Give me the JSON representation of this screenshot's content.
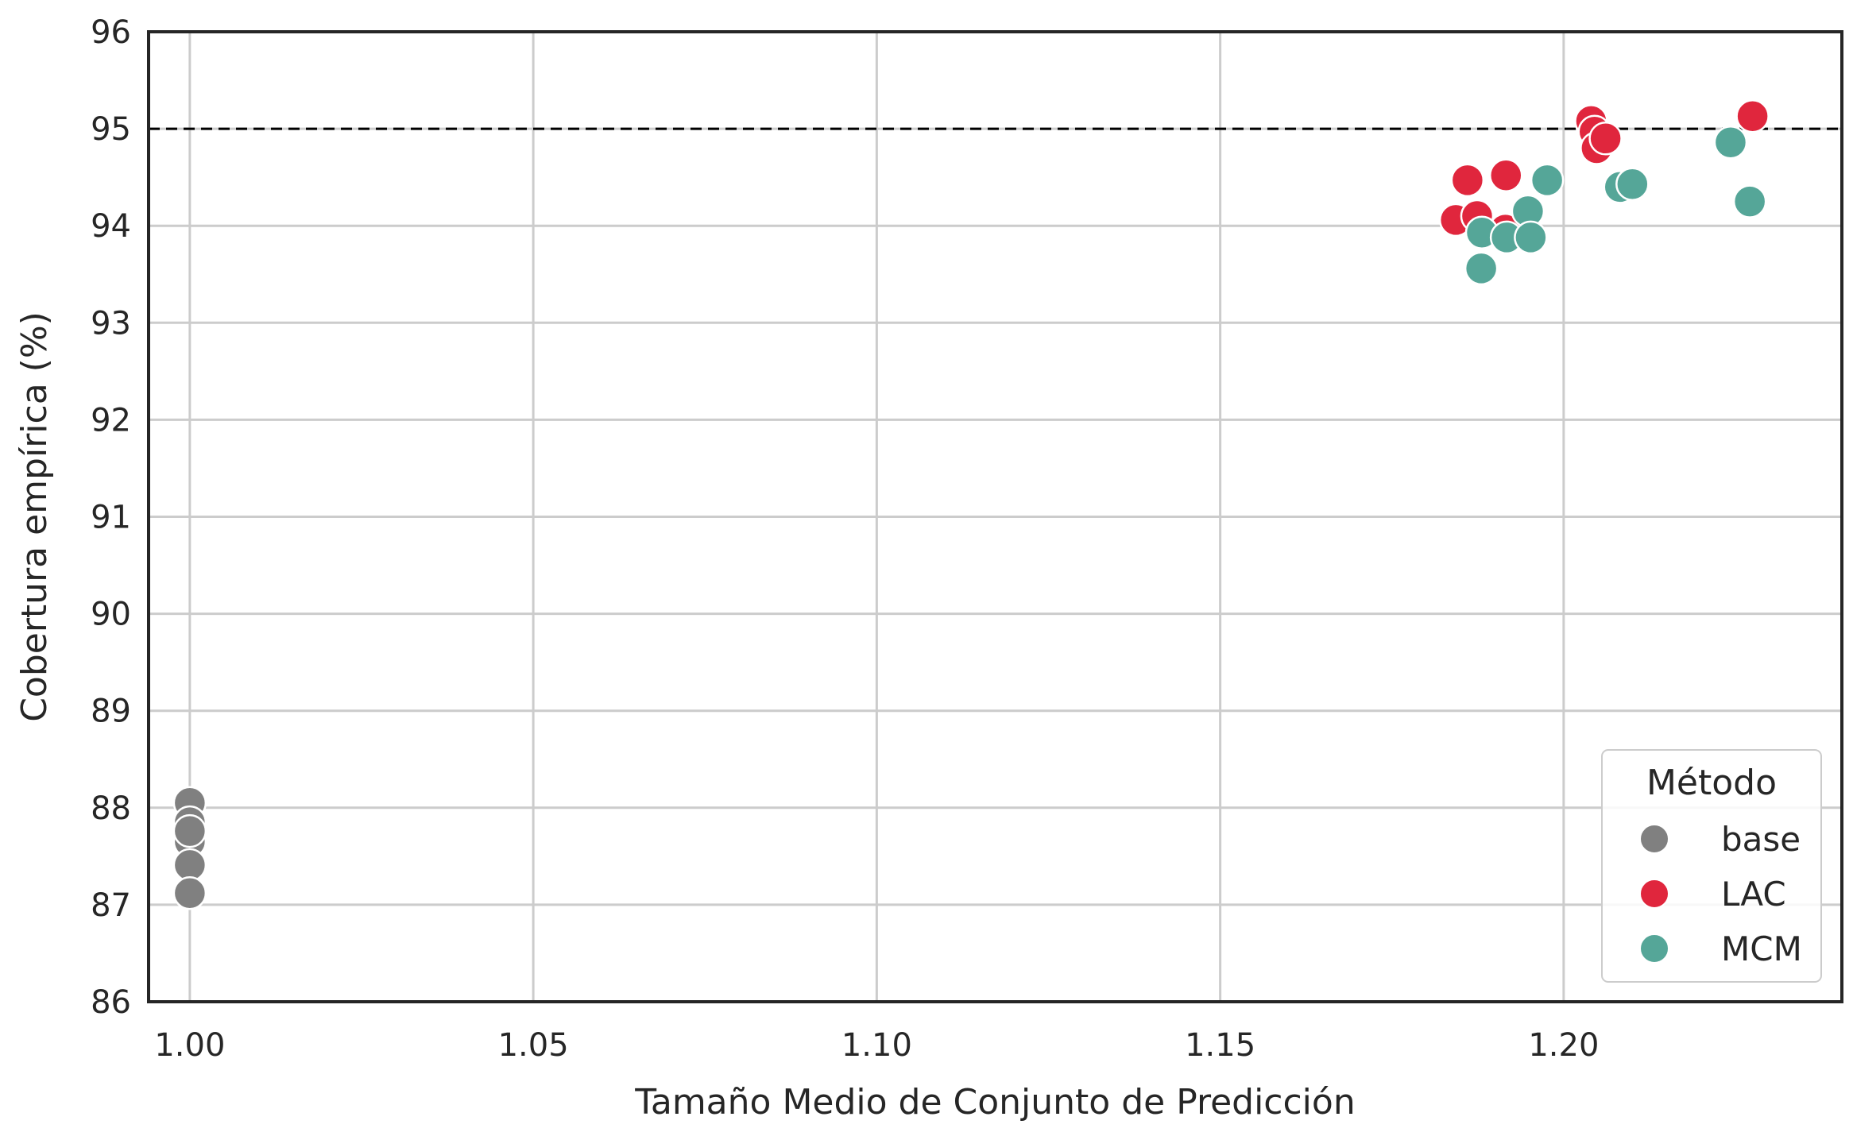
{
  "chart_data": {
    "type": "scatter",
    "title": "",
    "xlabel": "Tamaño Medio de Conjunto de Predicción",
    "ylabel": "Cobertura empírica (%)",
    "xlim": [
      0.994,
      1.2405
    ],
    "ylim": [
      86,
      96
    ],
    "xticks": [
      1.0,
      1.05,
      1.1,
      1.15,
      1.2
    ],
    "xtick_labels": [
      "1.00",
      "1.05",
      "1.10",
      "1.15",
      "1.20"
    ],
    "yticks": [
      86,
      87,
      88,
      89,
      90,
      91,
      92,
      93,
      94,
      95,
      96
    ],
    "ytick_labels": [
      "86",
      "87",
      "88",
      "89",
      "90",
      "91",
      "92",
      "93",
      "94",
      "95",
      "96"
    ],
    "grid": true,
    "reference_line": {
      "y": 95,
      "style": "dashed",
      "color": "#000000"
    },
    "legend": {
      "title": "Método",
      "position": "bottom-right"
    },
    "series": [
      {
        "name": "base",
        "color": "#808080",
        "points": [
          {
            "x": 1.0,
            "y": 88.05
          },
          {
            "x": 1.0,
            "y": 87.85
          },
          {
            "x": 1.0,
            "y": 87.65
          },
          {
            "x": 1.0,
            "y": 87.76
          },
          {
            "x": 1.0,
            "y": 87.41
          },
          {
            "x": 1.0,
            "y": 87.12
          }
        ]
      },
      {
        "name": "LAC",
        "color": "#e0263d",
        "points": [
          {
            "x": 1.1843,
            "y": 94.06
          },
          {
            "x": 1.186,
            "y": 94.47
          },
          {
            "x": 1.1874,
            "y": 94.1
          },
          {
            "x": 1.1916,
            "y": 94.52
          },
          {
            "x": 1.1915,
            "y": 93.96
          },
          {
            "x": 1.204,
            "y": 95.08
          },
          {
            "x": 1.2045,
            "y": 94.97
          },
          {
            "x": 1.2048,
            "y": 94.8
          },
          {
            "x": 1.2061,
            "y": 94.9
          },
          {
            "x": 1.2275,
            "y": 95.13
          }
        ]
      },
      {
        "name": "MCM",
        "color": "#55a698",
        "points": [
          {
            "x": 1.1881,
            "y": 93.93
          },
          {
            "x": 1.188,
            "y": 93.56
          },
          {
            "x": 1.1917,
            "y": 93.88
          },
          {
            "x": 1.1948,
            "y": 94.15
          },
          {
            "x": 1.1952,
            "y": 93.88
          },
          {
            "x": 1.1976,
            "y": 94.47
          },
          {
            "x": 1.2082,
            "y": 94.4
          },
          {
            "x": 1.21,
            "y": 94.43
          },
          {
            "x": 1.2243,
            "y": 94.86
          },
          {
            "x": 1.2271,
            "y": 94.25
          }
        ]
      }
    ]
  }
}
